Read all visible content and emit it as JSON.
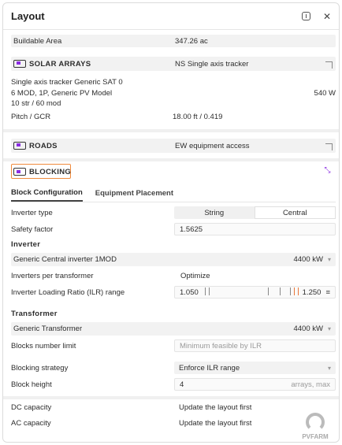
{
  "header": {
    "title": "Layout"
  },
  "buildable": {
    "label": "Buildable Area",
    "value": "347.26 ac"
  },
  "solar": {
    "label": "SOLAR ARRAYS",
    "value": "NS Single axis tracker",
    "line1": "Single axis tracker Generic SAT 0",
    "line2": "6 MOD, 1P, Generic PV Model",
    "power": "540 W",
    "line3": "10 str / 60 mod",
    "pitch_label": "Pitch / GCR",
    "pitch_value": "18.00 ft / 0.419"
  },
  "roads": {
    "label": "ROADS",
    "value": "EW equipment access"
  },
  "blocking": {
    "label": "BLOCKING",
    "tabs": [
      "Block Configuration",
      "Equipment Placement"
    ],
    "inverter_type_label": "Inverter type",
    "inverter_type_options": [
      "String",
      "Central"
    ],
    "safety_label": "Safety factor",
    "safety_value": "1.5625",
    "inverter_section": "Inverter",
    "inverter_model": "Generic Central inverter 1MOD",
    "inverter_power": "4400 kW",
    "ipt_label": "Inverters per transformer",
    "ipt_value": "Optimize",
    "ilr_label": "Inverter Loading Ratio (ILR) range",
    "ilr_min": "1.050",
    "ilr_max": "1.250",
    "transformer_section": "Transformer",
    "transformer_model": "Generic Transformer",
    "transformer_power": "4400 kW",
    "blocks_limit_label": "Blocks number limit",
    "blocks_limit_placeholder": "Minimum feasible by ILR",
    "strategy_label": "Blocking strategy",
    "strategy_value": "Enforce ILR range",
    "height_label": "Block height",
    "height_value": "4",
    "height_unit": "arrays, max"
  },
  "footer": {
    "dc_label": "DC capacity",
    "dc_value": "Update the layout first",
    "ac_label": "AC capacity",
    "ac_value": "Update the layout first",
    "logo_text": "PVFARM"
  }
}
